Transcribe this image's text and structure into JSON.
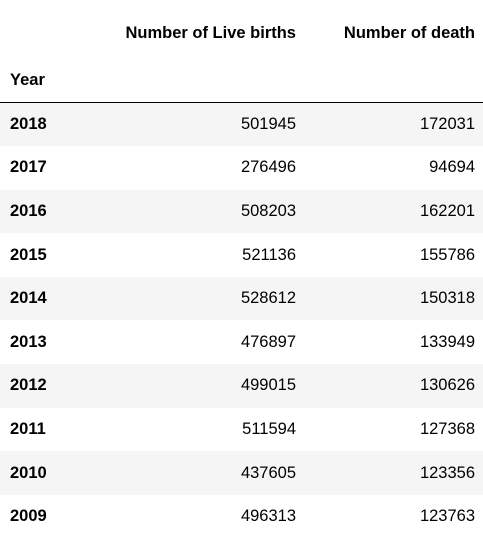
{
  "table": {
    "columns": [
      "Number of Live births",
      "Number of death"
    ],
    "index_name": "Year",
    "rows": [
      {
        "year": "2018",
        "live_births": "501945",
        "deaths": "172031"
      },
      {
        "year": "2017",
        "live_births": "276496",
        "deaths": "94694"
      },
      {
        "year": "2016",
        "live_births": "508203",
        "deaths": "162201"
      },
      {
        "year": "2015",
        "live_births": "521136",
        "deaths": "155786"
      },
      {
        "year": "2014",
        "live_births": "528612",
        "deaths": "150318"
      },
      {
        "year": "2013",
        "live_births": "476897",
        "deaths": "133949"
      },
      {
        "year": "2012",
        "live_births": "499015",
        "deaths": "130626"
      },
      {
        "year": "2011",
        "live_births": "511594",
        "deaths": "127368"
      },
      {
        "year": "2010",
        "live_births": "437605",
        "deaths": "123356"
      },
      {
        "year": "2009",
        "live_births": "496313",
        "deaths": "123763"
      }
    ]
  }
}
